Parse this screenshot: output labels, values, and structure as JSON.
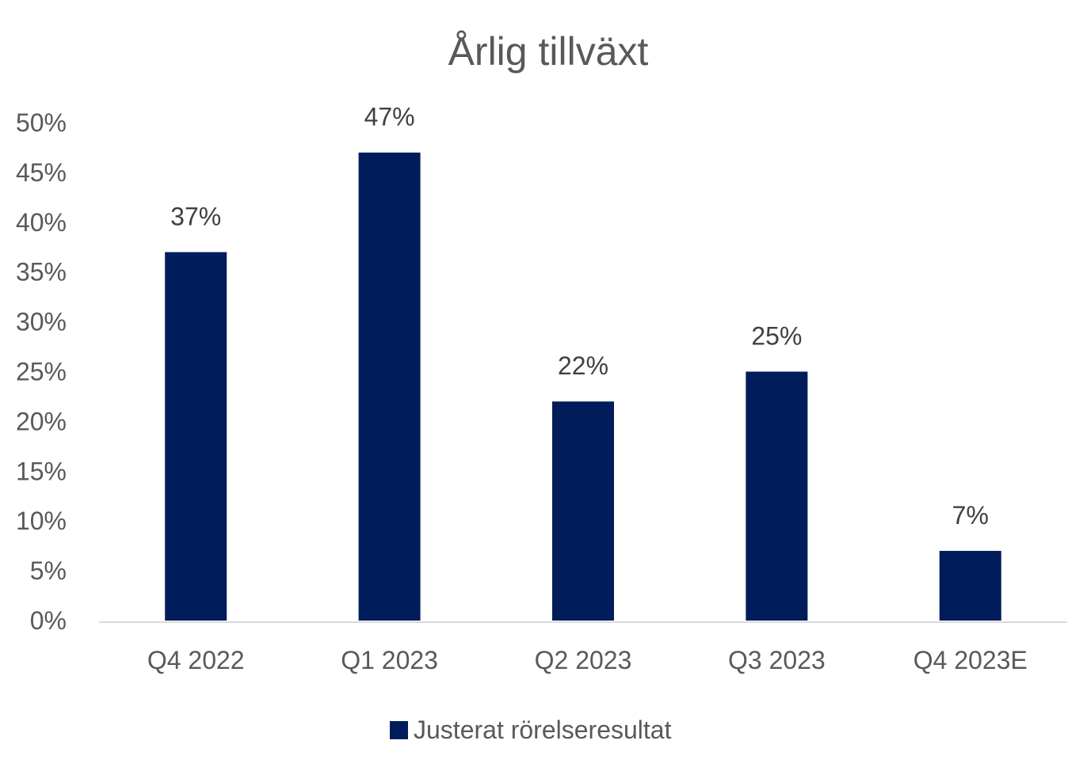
{
  "chart_data": {
    "type": "bar",
    "title": "Årlig tillväxt",
    "categories": [
      "Q4 2022",
      "Q1 2023",
      "Q2 2023",
      "Q3 2023",
      "Q4 2023E"
    ],
    "series": [
      {
        "name": "Justerat rörelseresultat",
        "values": [
          37,
          47,
          22,
          25,
          7
        ],
        "data_labels": [
          "37%",
          "47%",
          "22%",
          "25%",
          "7%"
        ],
        "color": "#001c5a"
      }
    ],
    "ylim": [
      0,
      50
    ],
    "yticks": [
      "0%",
      "5%",
      "10%",
      "15%",
      "20%",
      "25%",
      "30%",
      "35%",
      "40%",
      "45%",
      "50%"
    ],
    "grid": false,
    "legend": "bottom"
  }
}
